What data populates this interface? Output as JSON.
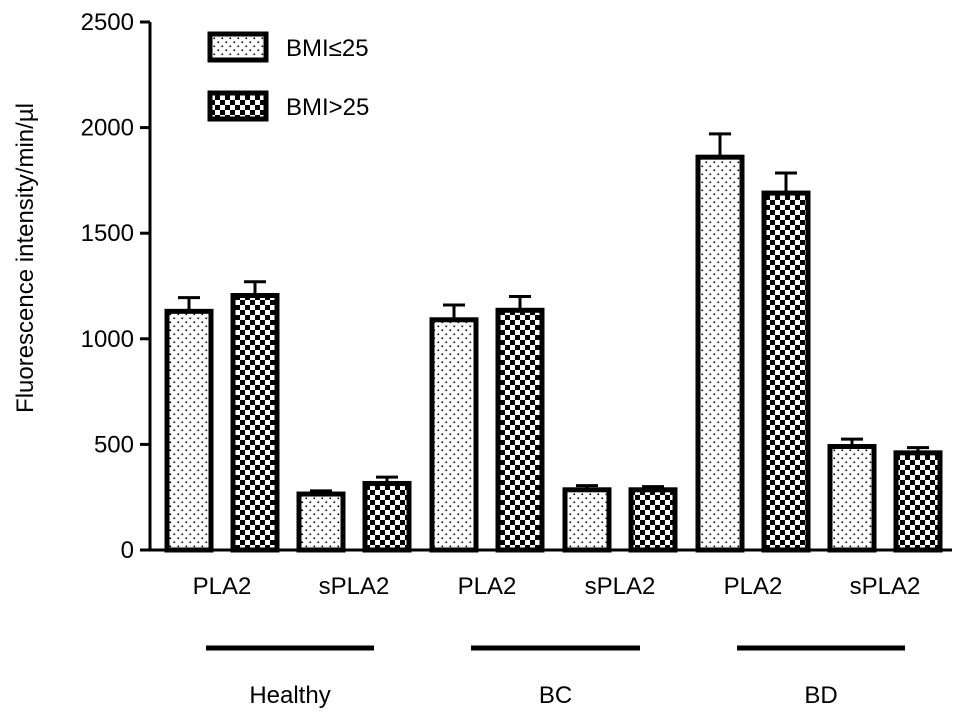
{
  "chart_data": {
    "type": "bar",
    "ylabel": "Fluorescence intensity/min/µl",
    "ylim": [
      0,
      2500
    ],
    "yticks": [
      0,
      500,
      1000,
      1500,
      2000,
      2500
    ],
    "grid": false,
    "legend_position": "top-left",
    "series": [
      {
        "name": "BMI≤25",
        "pattern": "dots",
        "values": [
          1130,
          265,
          1090,
          285,
          1860,
          490
        ],
        "errors": [
          65,
          15,
          70,
          20,
          110,
          35
        ]
      },
      {
        "name": "BMI>25",
        "pattern": "checker",
        "values": [
          1205,
          315,
          1135,
          285,
          1690,
          460
        ],
        "errors": [
          65,
          30,
          65,
          15,
          95,
          25
        ]
      }
    ],
    "categories": [
      "PLA2",
      "sPLA2",
      "PLA2",
      "sPLA2",
      "PLA2",
      "sPLA2"
    ],
    "groups": [
      {
        "label": "Healthy",
        "categories": [
          0,
          1
        ]
      },
      {
        "label": "BC",
        "categories": [
          2,
          3
        ]
      },
      {
        "label": "BD",
        "categories": [
          4,
          5
        ]
      }
    ]
  }
}
